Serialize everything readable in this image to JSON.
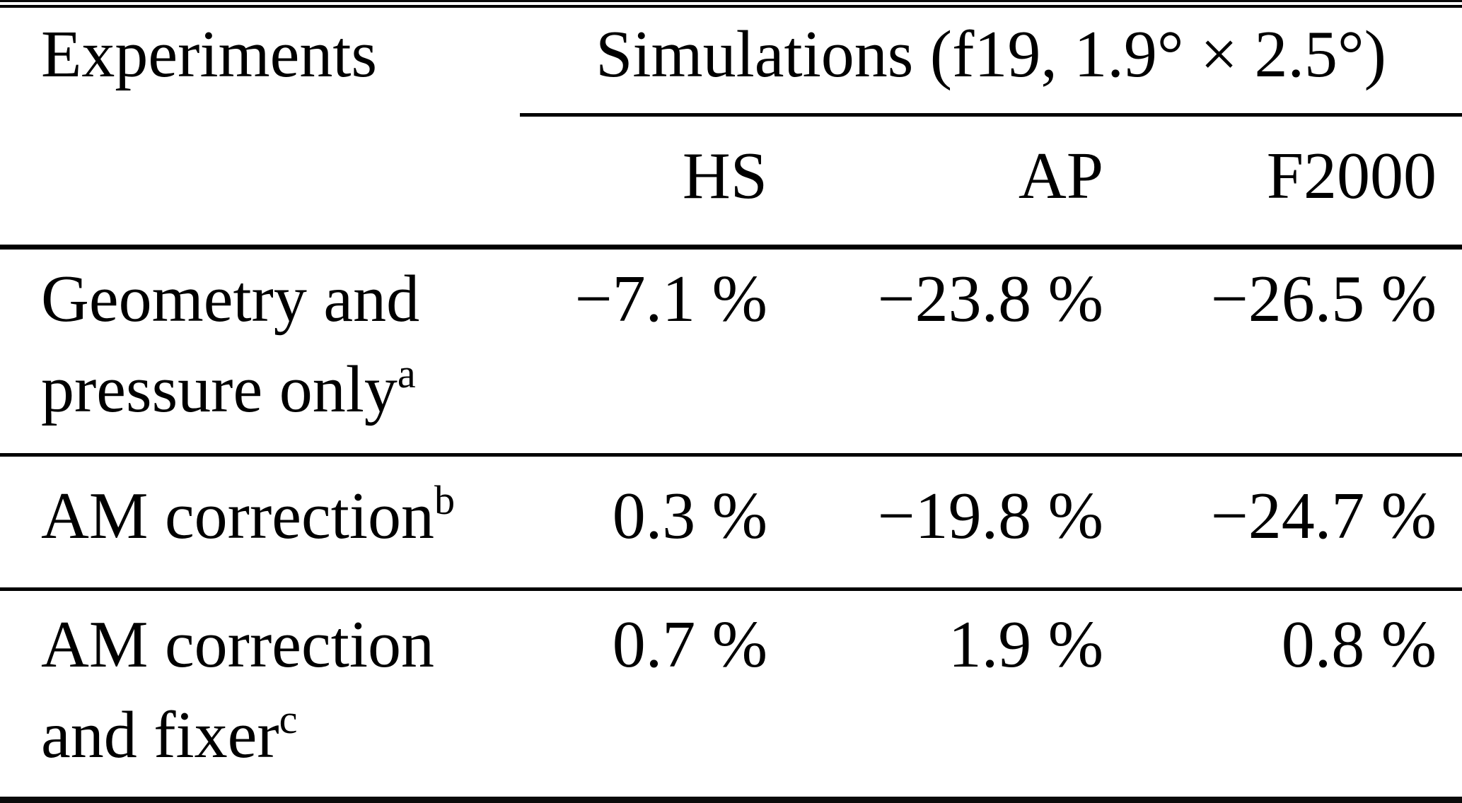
{
  "table": {
    "header": {
      "experiments": "Experiments",
      "simulations_group": "Simulations (f19, 1.9° × 2.5°)",
      "columns": [
        "HS",
        "AP",
        "F2000"
      ]
    },
    "rows": [
      {
        "label": "Geometry and pressure only",
        "footnote_mark": "a",
        "values": [
          "−7.1 %",
          "−23.8 %",
          "−26.5 %"
        ]
      },
      {
        "label": "AM correction",
        "footnote_mark": "b",
        "values": [
          "0.3 %",
          "−19.8 %",
          "−24.7 %"
        ]
      },
      {
        "label": "AM correction and fixer",
        "footnote_mark": "c",
        "values": [
          "0.7 %",
          "1.9 %",
          "0.8 %"
        ]
      }
    ]
  }
}
